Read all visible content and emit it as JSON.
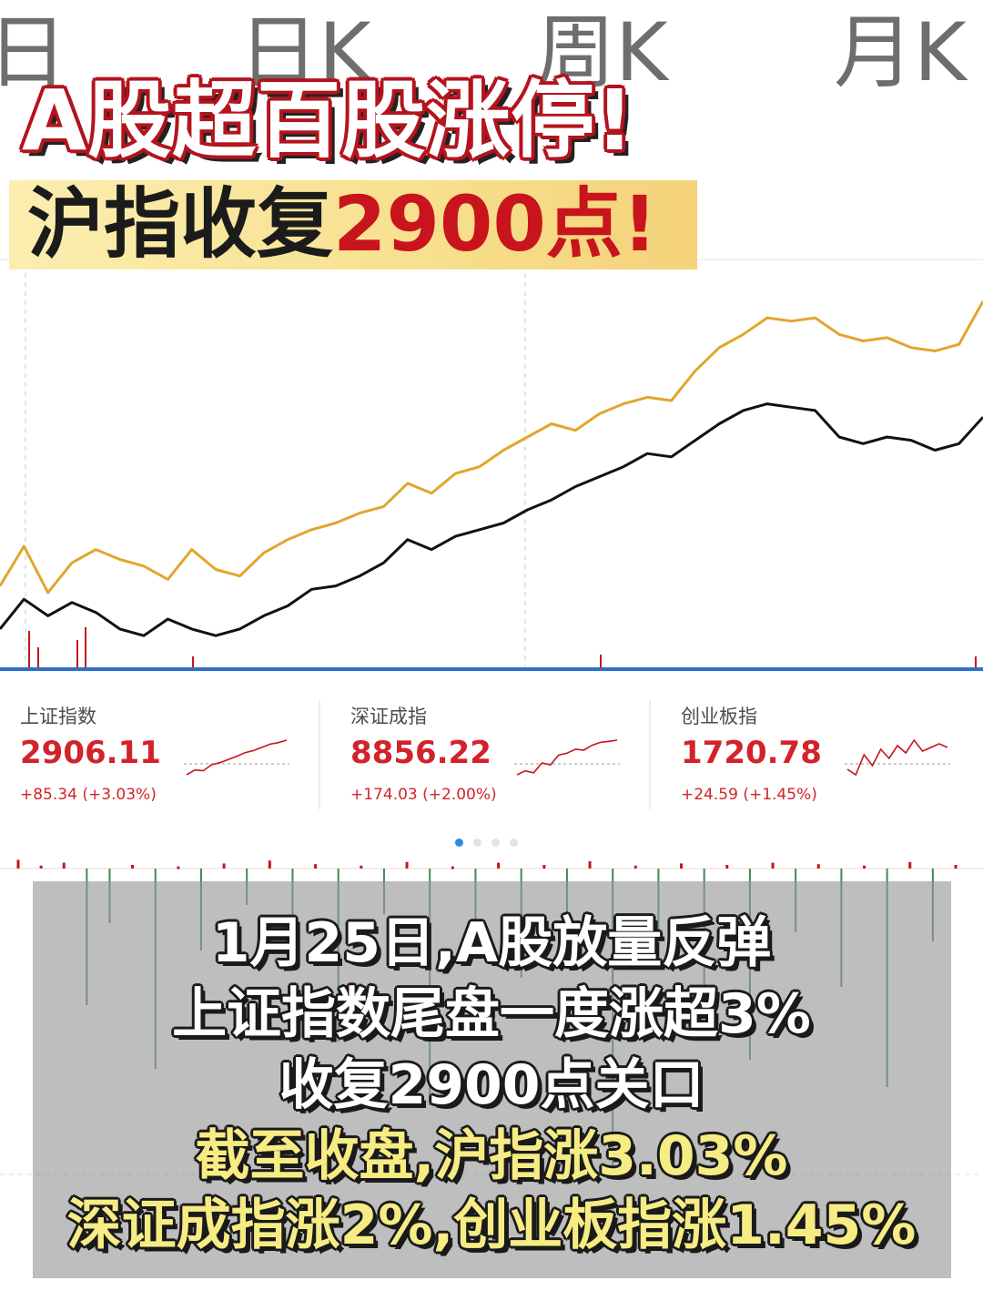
{
  "tabs": [
    "日",
    "日K",
    "周K",
    "月K"
  ],
  "headline": {
    "line1": "A股超百股涨停!",
    "line2_prefix": "沪指收复",
    "line2_highlight": "2900点!"
  },
  "indices": [
    {
      "name": "上证指数",
      "value": "2906.11",
      "change": "+85.34 (+3.03%)"
    },
    {
      "name": "深证成指",
      "value": "8856.22",
      "change": "+174.03 (+2.00%)"
    },
    {
      "name": "创业板指",
      "value": "1720.78",
      "change": "+24.59 (+1.45%)"
    }
  ],
  "carousel": {
    "count": 4,
    "active": 0
  },
  "caption": {
    "line1": "1月25日,A股放量反弹",
    "line2": "上证指数尾盘一度涨超3%",
    "line3": "收复2900点关口",
    "line4": "截至收盘,沪指涨3.03%",
    "line5": "深证成指涨2%,创业板指涨1.45%"
  },
  "colors": {
    "price_line": "#e2a62c",
    "avg_line": "#111111",
    "up": "#c8141c",
    "down": "#3f8a55",
    "accent_blue": "#2f6fc9"
  },
  "chart_data": [
    {
      "type": "line",
      "series": [
        {
          "values": [
            2821,
            2833,
            2819,
            2828,
            2832,
            2829,
            2827,
            2823,
            2832,
            2826,
            2824,
            2831,
            2835,
            2838,
            2840,
            2843,
            2845,
            2852,
            2849,
            2855,
            2857,
            2862,
            2866,
            2870,
            2868,
            2873,
            2876,
            2878,
            2877,
            2886,
            2893,
            2897,
            2902,
            2901,
            2902,
            2897,
            2895,
            2896,
            2893,
            2892,
            2894,
            2907
          ]
        },
        {
          "values": [
            2808,
            2817,
            2812,
            2816,
            2813,
            2808,
            2806,
            2811,
            2808,
            2806,
            2808,
            2812,
            2815,
            2820,
            2821,
            2824,
            2828,
            2835,
            2832,
            2836,
            2838,
            2840,
            2844,
            2847,
            2851,
            2854,
            2857,
            2861,
            2860,
            2865,
            2870,
            2874,
            2876,
            2875,
            2874,
            2866,
            2864,
            2866,
            2865,
            2862,
            2864,
            2872
          ]
        }
      ]
    },
    {
      "type": "bar",
      "series": [
        {
          "values": [
            1.2,
            0.4,
            0.8,
            -1.5,
            -0.6,
            0.5,
            -2.2,
            0.3,
            -0.9,
            0.7,
            -0.4,
            1.1,
            -0.8,
            0.6,
            -1.9,
            0.4,
            -0.5,
            0.9,
            -2.6,
            0.3,
            -0.7,
            0.8,
            -1.2,
            0.5,
            -0.6,
            1.0,
            -3.4,
            0.4,
            -0.9,
            0.7,
            -1.6,
            0.5,
            -2.1,
            0.8,
            -0.7,
            0.6,
            -1.3,
            0.4,
            -2.4,
            0.9,
            -0.8,
            0.5
          ]
        }
      ]
    }
  ]
}
